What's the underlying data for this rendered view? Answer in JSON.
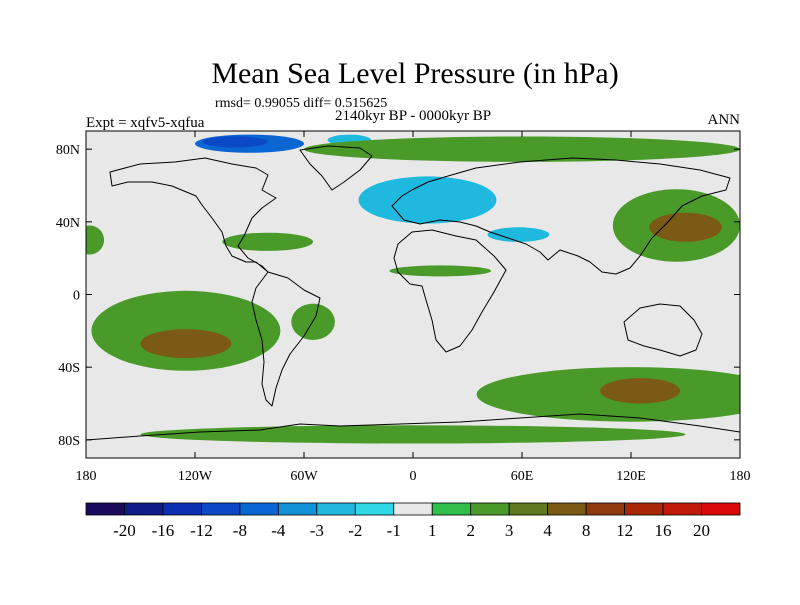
{
  "chart_data": {
    "type": "heatmap",
    "title": "Mean Sea Level Pressure (in hPa)",
    "stats_line": "rmsd= 0.99055  diff= 0.515625",
    "left_label": "Expt = xqfv5-xqfua",
    "center_label": "2140kyr BP - 0000kyr BP",
    "right_label": "ANN",
    "x_axis": {
      "range": [
        -180,
        180
      ],
      "ticks": [
        {
          "value": -180,
          "label": "180"
        },
        {
          "value": -120,
          "label": "120W"
        },
        {
          "value": -60,
          "label": "60W"
        },
        {
          "value": 0,
          "label": "0"
        },
        {
          "value": 60,
          "label": "60E"
        },
        {
          "value": 120,
          "label": "120E"
        },
        {
          "value": 180,
          "label": "180"
        }
      ]
    },
    "y_axis": {
      "range": [
        -90,
        90
      ],
      "ticks": [
        {
          "value": 80,
          "label": "80N"
        },
        {
          "value": 40,
          "label": "40N"
        },
        {
          "value": 0,
          "label": "0"
        },
        {
          "value": -40,
          "label": "40S"
        },
        {
          "value": -80,
          "label": "80S"
        }
      ]
    },
    "colorbar": {
      "labels": [
        "-20",
        "-16",
        "-12",
        "-8",
        "-4",
        "-3",
        "-2",
        "-1",
        "1",
        "2",
        "3",
        "4",
        "8",
        "12",
        "16",
        "20"
      ],
      "colors": [
        "#1a0a5e",
        "#0f1c8a",
        "#0a2fb0",
        "#0a48c6",
        "#0a66d2",
        "#1291d8",
        "#1fb9e0",
        "#2fd8e6",
        "#e8e8e8",
        "#2fbf4a",
        "#4a9a2a",
        "#5f7a1e",
        "#7a5a14",
        "#8e3a0e",
        "#a82808",
        "#c21a0a",
        "#d80a0a"
      ]
    },
    "regions": [
      {
        "name": "arctic-canada-negative",
        "level": -4,
        "lon": -90,
        "lat": 83,
        "rlon": 30,
        "rlat": 5
      },
      {
        "name": "arctic-canada-core",
        "level": -8,
        "lon": -98,
        "lat": 84,
        "rlon": 18,
        "rlat": 3
      },
      {
        "name": "greenland-negative",
        "level": -2,
        "lon": -35,
        "lat": 85,
        "rlon": 12,
        "rlat": 3
      },
      {
        "name": "europe-negative",
        "level": -2,
        "lon": 8,
        "lat": 52,
        "rlon": 38,
        "rlat": 13
      },
      {
        "name": "asia-negative",
        "level": -2,
        "lon": 58,
        "lat": 33,
        "rlon": 17,
        "rlat": 4
      },
      {
        "name": "arctic-positive",
        "level": 2,
        "lon": 60,
        "lat": 80,
        "rlon": 120,
        "rlat": 7
      },
      {
        "name": "north-pacific-positive",
        "level": 2,
        "lon": 145,
        "lat": 38,
        "rlon": 35,
        "rlat": 20
      },
      {
        "name": "north-pacific-core",
        "level": 4,
        "lon": 150,
        "lat": 37,
        "rlon": 20,
        "rlat": 8
      },
      {
        "name": "south-pacific-positive",
        "level": 2,
        "lon": -125,
        "lat": -20,
        "rlon": 52,
        "rlat": 22
      },
      {
        "name": "south-pacific-core",
        "level": 4,
        "lon": -125,
        "lat": -27,
        "rlon": 25,
        "rlat": 8
      },
      {
        "name": "southern-ocean-positive",
        "level": 2,
        "lon": 120,
        "lat": -55,
        "rlon": 85,
        "rlat": 15
      },
      {
        "name": "southern-ocean-core",
        "level": 4,
        "lon": 125,
        "lat": -53,
        "rlon": 22,
        "rlat": 7
      },
      {
        "name": "antarctic-positive",
        "level": 2,
        "lon": 0,
        "lat": -77,
        "rlon": 150,
        "rlat": 5
      },
      {
        "name": "sahel-positive",
        "level": 2,
        "lon": 15,
        "lat": 13,
        "rlon": 28,
        "rlat": 3
      },
      {
        "name": "gulf-positive",
        "level": 2,
        "lon": -80,
        "lat": 29,
        "rlon": 25,
        "rlat": 5
      },
      {
        "name": "west-pacific-positive",
        "level": 2,
        "lon": -178,
        "lat": 30,
        "rlon": 8,
        "rlat": 8
      },
      {
        "name": "south-atlantic-positive",
        "level": 2,
        "lon": -55,
        "lat": -15,
        "rlon": 12,
        "rlat": 10
      }
    ]
  }
}
